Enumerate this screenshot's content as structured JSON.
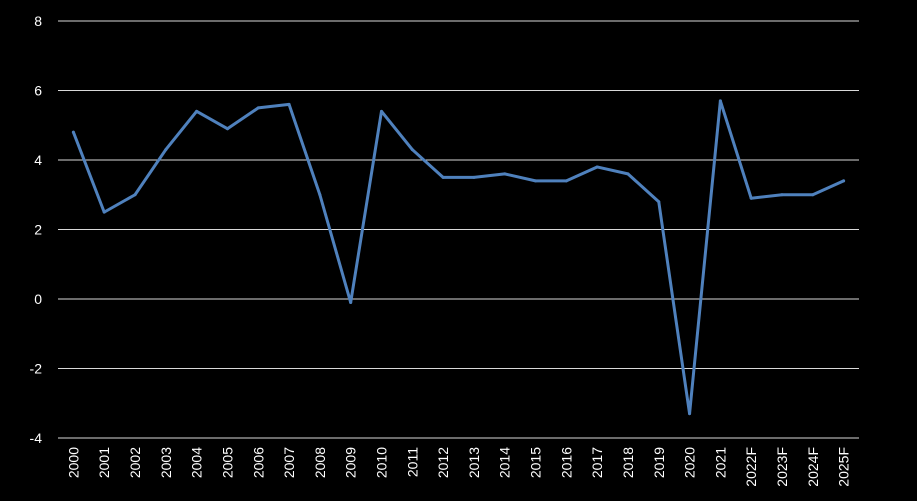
{
  "chart_data": {
    "type": "line",
    "title": "",
    "xlabel": "",
    "ylabel": "",
    "categories": [
      "2000",
      "2001",
      "2002",
      "2003",
      "2004",
      "2005",
      "2006",
      "2007",
      "2008",
      "2009",
      "2010",
      "2011",
      "2012",
      "2013",
      "2014",
      "2015",
      "2016",
      "2017",
      "2018",
      "2019",
      "2020",
      "2021",
      "2022F",
      "2023F",
      "2024F",
      "2025F"
    ],
    "series": [
      {
        "values": [
          4.8,
          2.5,
          3.0,
          4.3,
          5.4,
          4.9,
          5.5,
          5.6,
          3.0,
          -0.1,
          5.4,
          4.3,
          3.5,
          3.5,
          3.6,
          3.4,
          3.4,
          3.8,
          3.6,
          2.8,
          -3.3,
          5.7,
          2.9,
          3.0,
          3.0,
          3.4
        ],
        "color": "#4f81bd"
      }
    ],
    "ylim": [
      -4,
      8
    ],
    "yticks": [
      8,
      6,
      4,
      2,
      0,
      -2,
      -4
    ],
    "grid": true,
    "legend": "none",
    "colors": {
      "background": "#000000",
      "line": "#4f81bd",
      "grid": "#d9d9d9",
      "text": "#ffffff"
    }
  }
}
